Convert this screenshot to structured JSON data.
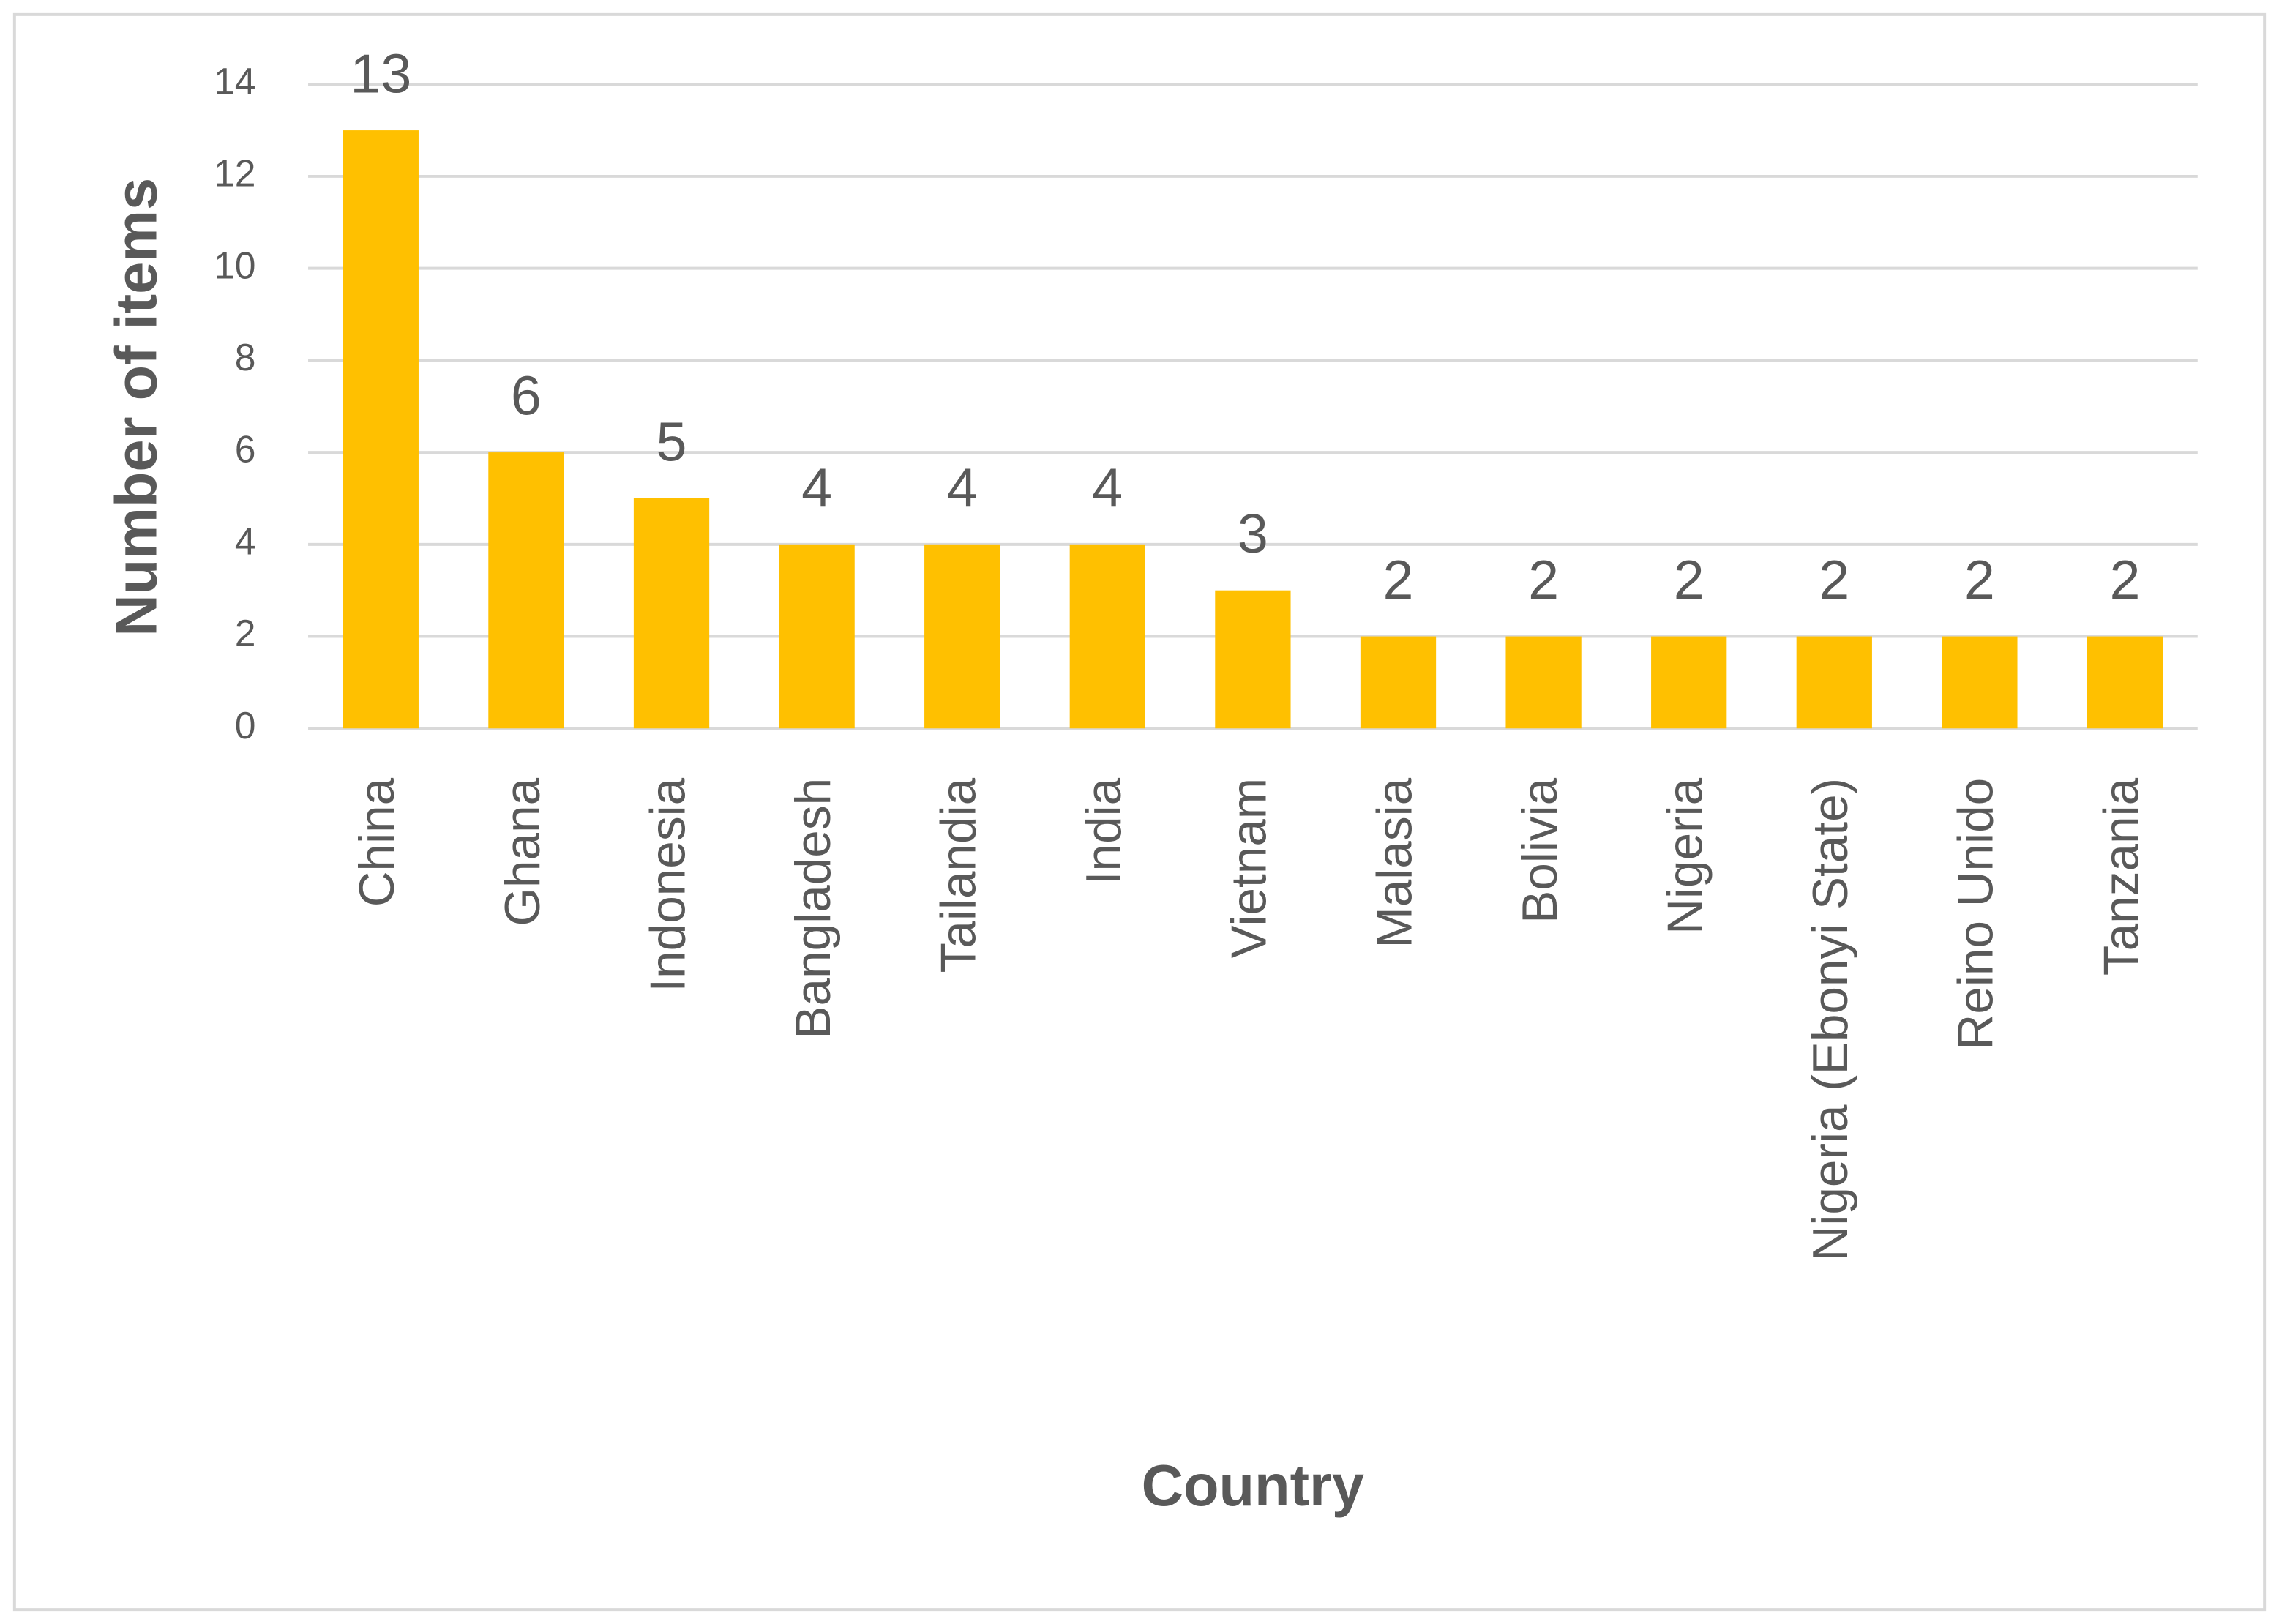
{
  "chart_data": {
    "type": "bar",
    "x_label": "Country",
    "y_label": "Number of items",
    "categories": [
      "China",
      "Ghana",
      "Indonesia",
      "Bangladesh",
      "Tailandia",
      "India",
      "Vietnam",
      "Malasia",
      "Bolivia",
      "Nigeria",
      "Nigeria (Ebonyi State)",
      "Reino Unido",
      "Tanzania"
    ],
    "values": [
      13,
      6,
      5,
      4,
      4,
      4,
      3,
      2,
      2,
      2,
      2,
      2,
      2
    ],
    "color": "#FFC000",
    "ylim": [
      0,
      14
    ],
    "yticks": [
      0,
      2,
      4,
      6,
      8,
      10,
      12,
      14
    ],
    "grid": true
  }
}
